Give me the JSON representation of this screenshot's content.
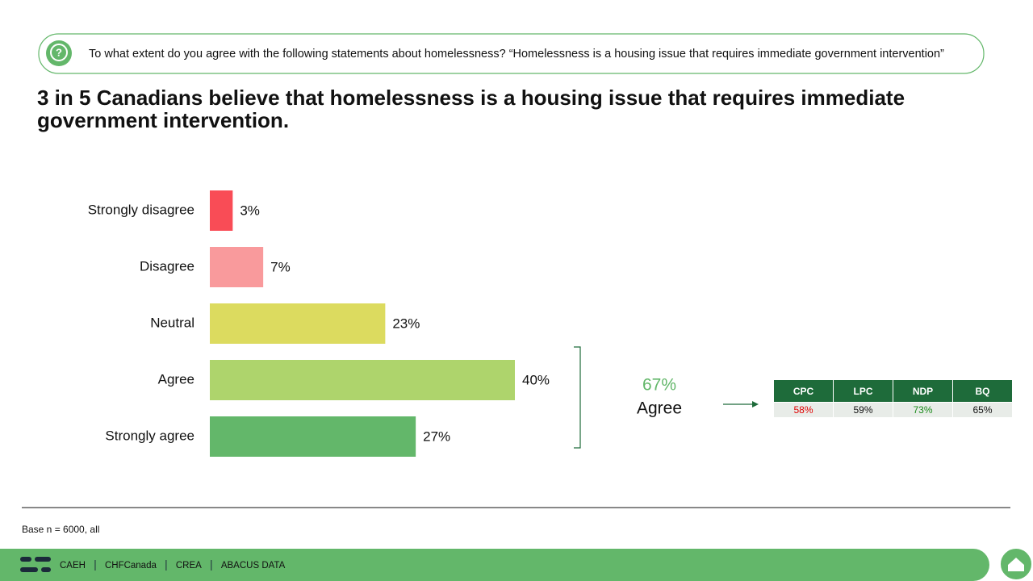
{
  "question": "To what extent do you agree with the following statements about homelessness? “Homelessness is a housing issue that requires immediate government intervention”",
  "headline": [
    "3 in 5 Canadians believe that homelessness is a housing issue that requires immediate",
    "government intervention."
  ],
  "chart_data": {
    "type": "bar",
    "horizontal": true,
    "categories": [
      "Strongly disagree",
      "Disagree",
      "Neutral",
      "Agree",
      "Strongly agree"
    ],
    "values": [
      3,
      7,
      23,
      40,
      27
    ],
    "value_labels": [
      "3%",
      "7%",
      "23%",
      "40%",
      "27%"
    ],
    "colors": [
      "#f94c56",
      "#f99a9c",
      "#dcdb5f",
      "#aed46c",
      "#63b76a"
    ]
  },
  "summary": {
    "value": "67%",
    "label": "Agree"
  },
  "party_table": {
    "columns": [
      "CPC",
      "LPC",
      "NDP",
      "BQ"
    ],
    "values": [
      "58%",
      "59%",
      "73%",
      "65%"
    ],
    "colors": [
      "#e00000",
      "#111111",
      "#1a8a1a",
      "#111111"
    ]
  },
  "footnote": "Base n = 6000, all",
  "footer_links": [
    "CAEH",
    "CHFCanada",
    "CREA",
    "ABACUS DATA"
  ]
}
